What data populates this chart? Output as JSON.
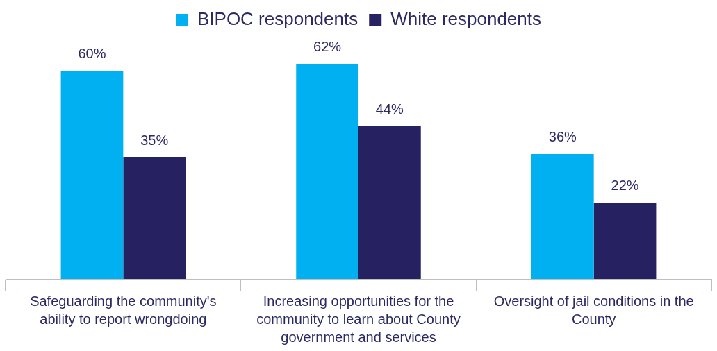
{
  "chart_data": {
    "type": "bar",
    "categories": [
      "Safeguarding the community's ability to report wrongdoing",
      "Increasing opportunities for the community to learn about County government and services",
      "Oversight of jail conditions in the County"
    ],
    "series": [
      {
        "name": "BIPOC respondents",
        "color": "#00b0f0",
        "values": [
          60,
          62,
          36
        ],
        "value_labels": [
          "60%",
          "62%",
          "36%"
        ]
      },
      {
        "name": "White respondents",
        "color": "#262262",
        "values": [
          35,
          44,
          22
        ],
        "value_labels": [
          "35%",
          "44%",
          "22%"
        ]
      }
    ],
    "legend": "top",
    "grid": false
  }
}
